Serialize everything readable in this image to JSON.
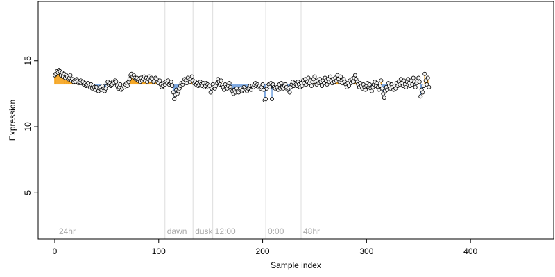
{
  "chart_data": {
    "type": "scatter",
    "title": "",
    "xlabel": "Sample index",
    "ylabel": "Expression",
    "xlim": [
      -16,
      480
    ],
    "ylim": [
      1.5,
      19.5
    ],
    "xticks": [
      0,
      100,
      200,
      300,
      400
    ],
    "xtick_labels": [
      "0",
      "100",
      "200",
      "300",
      "400"
    ],
    "yticks": [
      5,
      10,
      15
    ],
    "ytick_labels": [
      "5",
      "10",
      "15"
    ],
    "baseline": 13.2,
    "grid": false,
    "legend": "none",
    "colors": {
      "above_baseline": "#f5a623",
      "below_baseline": "#7aa6e0",
      "marker_line": "#dddddd",
      "marker_text": "#aaaaaa",
      "point_fill": "#f2f2f2",
      "point_stroke": "#000000"
    },
    "markers": [
      {
        "x": 2,
        "label": "24hr"
      },
      {
        "x": 106,
        "label": "dawn"
      },
      {
        "x": 133,
        "label": "dusk"
      },
      {
        "x": 152,
        "label": "12:00"
      },
      {
        "x": 203,
        "label": "0:00"
      },
      {
        "x": 237,
        "label": "48hr"
      }
    ],
    "series": [
      {
        "values": [
          13.9,
          14.0,
          14.2,
          14.1,
          14.3,
          14.2,
          13.9,
          14.1,
          13.8,
          14.0,
          13.7,
          13.9,
          13.8,
          13.6,
          13.7,
          13.9,
          13.5,
          13.6,
          13.4,
          13.5,
          13.4,
          13.6,
          13.5,
          13.3,
          13.4,
          13.5,
          13.3,
          13.4,
          13.2,
          13.3,
          13.1,
          13.2,
          13.3,
          13.1,
          13.0,
          13.2,
          12.9,
          13.1,
          13.0,
          12.8,
          13.0,
          12.9,
          12.7,
          12.9,
          13.0,
          12.8,
          13.1,
          12.9,
          12.7,
          12.9,
          13.3,
          13.4,
          13.2,
          13.3,
          13.1,
          13.2,
          13.4,
          13.3,
          13.5,
          13.4,
          13.1,
          12.9,
          13.0,
          13.2,
          12.8,
          12.9,
          13.1,
          13.0,
          13.2,
          13.3,
          13.1,
          13.4,
          13.6,
          13.9,
          14.0,
          13.8,
          13.9,
          13.7,
          13.6,
          13.7,
          13.5,
          13.6,
          13.4,
          13.7,
          13.5,
          13.6,
          13.8,
          13.5,
          13.7,
          13.4,
          13.6,
          13.8,
          13.5,
          13.7,
          13.6,
          13.4,
          13.5,
          13.7,
          13.6,
          13.4,
          13.3,
          13.5,
          13.2,
          13.0,
          13.1,
          13.3,
          13.2,
          13.4,
          13.3,
          13.5,
          13.2,
          13.3,
          13.4,
          13.1,
          12.6,
          12.1,
          12.4,
          12.8,
          12.5,
          12.7,
          12.9,
          13.1,
          13.3,
          13.2,
          13.4,
          13.6,
          13.5,
          13.3,
          13.7,
          13.5,
          13.4,
          13.6,
          13.8,
          13.5,
          13.3,
          13.4,
          13.2,
          13.3,
          13.1,
          13.2,
          13.4,
          13.2,
          13.1,
          13.3,
          13.0,
          13.1,
          13.3,
          13.2,
          13.0,
          13.1,
          12.6,
          12.9,
          13.2,
          13.0,
          12.9,
          13.1,
          13.3,
          13.6,
          13.4,
          13.2,
          13.5,
          13.1,
          13.0,
          12.8,
          13.2,
          13.0,
          12.9,
          13.1,
          13.3,
          13.0,
          12.8,
          12.7,
          12.5,
          12.8,
          12.6,
          12.9,
          12.7,
          12.6,
          12.8,
          12.9,
          12.7,
          12.8,
          13.0,
          12.9,
          12.8,
          12.7,
          12.9,
          13.0,
          13.1,
          12.8,
          13.1,
          13.0,
          13.2,
          13.3,
          13.1,
          13.2,
          13.0,
          13.1,
          12.9,
          13.0,
          13.2,
          12.8,
          12.0,
          12.1,
          12.9,
          13.1,
          13.2,
          13.0,
          13.3,
          12.1,
          13.2,
          13.0,
          12.9,
          13.1,
          13.0,
          12.8,
          13.2,
          12.9,
          13.3,
          13.0,
          12.9,
          13.1,
          13.2,
          13.0,
          12.8,
          12.9,
          12.6,
          13.0,
          13.2,
          13.4,
          13.1,
          13.3,
          13.2,
          13.1,
          13.4,
          13.2,
          13.0,
          13.3,
          13.1,
          13.5,
          13.3,
          13.6,
          13.2,
          13.4,
          13.7,
          13.3,
          13.5,
          13.1,
          13.4,
          13.6,
          13.8,
          13.4,
          13.2,
          13.5,
          13.3,
          13.6,
          13.4,
          13.1,
          13.5,
          13.3,
          13.7,
          13.5,
          13.2,
          13.6,
          13.4,
          13.8,
          13.5,
          13.3,
          13.6,
          13.4,
          13.7,
          13.5,
          13.9,
          13.6,
          13.4,
          13.8,
          13.5,
          13.3,
          13.6,
          13.4,
          13.2,
          13.0,
          13.3,
          13.1,
          13.5,
          13.3,
          13.6,
          13.4,
          13.7,
          13.9,
          13.6,
          13.4,
          13.2,
          13.0,
          13.3,
          13.1,
          12.9,
          13.2,
          13.0,
          12.8,
          13.1,
          13.3,
          13.0,
          13.2,
          12.9,
          12.7,
          13.0,
          13.2,
          13.4,
          13.1,
          13.3,
          13.0,
          12.8,
          13.1,
          13.5,
          12.9,
          12.5,
          12.2,
          12.7,
          13.0,
          12.8,
          13.3,
          13.1,
          12.9,
          13.2,
          13.0,
          12.8,
          13.1,
          12.9,
          13.3,
          13.1,
          13.4,
          13.2,
          13.6,
          13.3,
          13.1,
          13.5,
          13.2,
          13.0,
          13.4,
          13.6,
          13.3,
          13.1,
          13.5,
          13.2,
          13.7,
          13.4,
          13.0,
          13.3,
          13.5,
          13.7,
          13.4,
          12.3,
          12.8,
          12.6,
          13.1,
          14.0,
          13.5,
          13.2,
          13.7,
          13.0
        ]
      }
    ]
  }
}
